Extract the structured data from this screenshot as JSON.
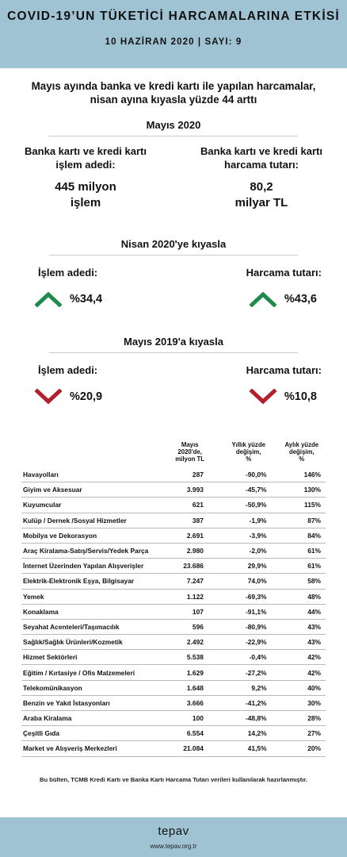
{
  "header": {
    "title": "COVID-19’UN TÜKETİCİ HARCAMALARINA ETKİSİ",
    "subtitle": "10 HAZİRAN 2020 | SAYI: 9"
  },
  "headline": {
    "line1": "Mayıs ayında banka ve kredi kartı ile yapılan harcamalar,",
    "line2": "nisan ayına kıyasla yüzde 44 arttı"
  },
  "may2020": {
    "title": "Mayıs 2020",
    "left": {
      "label1": "Banka kartı ve kredi kartı",
      "label2": "işlem adedi:",
      "value1": "445 milyon",
      "value2": "işlem"
    },
    "right": {
      "label1": "Banka kartı ve kredi kartı",
      "label2": "harcama tutarı:",
      "value1": "80,2",
      "value2": "milyar TL"
    }
  },
  "vs_april": {
    "title": "Nisan 2020'ye kıyasla",
    "left": {
      "label": "İşlem adedi:",
      "value": "%34,4",
      "direction": "up"
    },
    "right": {
      "label": "Harcama tutarı:",
      "value": "%43,6",
      "direction": "up"
    }
  },
  "vs_may2019": {
    "title": "Mayıs 2019'a kıyasla",
    "left": {
      "label": "İşlem adedi:",
      "value": "%20,9",
      "direction": "down"
    },
    "right": {
      "label": "Harcama tutarı:",
      "value": "%10,8",
      "direction": "down"
    }
  },
  "colors": {
    "header_bg": "#9fc3d2",
    "up_arrow": "#1e8a4c",
    "down_arrow": "#b31f2a"
  },
  "icons": {
    "up": "chevron-up-icon",
    "down": "chevron-down-icon"
  },
  "table": {
    "headers": {
      "category": "",
      "may2020": [
        "Mayıs",
        "2020'de,",
        "milyon TL"
      ],
      "yoy": [
        "Yıllık yüzde",
        "değişim,",
        "%"
      ],
      "mom": [
        "Aylık yüzde",
        "değişim,",
        "%"
      ]
    },
    "rows": [
      {
        "name": "Havayolları",
        "value": "287",
        "yoy": "-90,0%",
        "mom": "146%"
      },
      {
        "name": "Giyim ve Aksesuar",
        "value": "3.993",
        "yoy": "-45,7%",
        "mom": "130%"
      },
      {
        "name": "Kuyumcular",
        "value": "621",
        "yoy": "-50,9%",
        "mom": "115%"
      },
      {
        "name": "Kulüp / Dernek /Sosyal Hizmetler",
        "value": "387",
        "yoy": "-1,9%",
        "mom": "87%"
      },
      {
        "name": "Mobilya ve Dekorasyon",
        "value": "2.691",
        "yoy": "-3,9%",
        "mom": "84%"
      },
      {
        "name": "Araç Kiralama-Satış/Servis/Yedek Parça",
        "value": "2.980",
        "yoy": "-2,0%",
        "mom": "61%"
      },
      {
        "name": "İnternet Üzerinden Yapılan Alışverişler",
        "value": "23.686",
        "yoy": "29,9%",
        "mom": "61%"
      },
      {
        "name": "Elektrik-Elektronik Eşya, Bilgisayar",
        "value": "7.247",
        "yoy": "74,0%",
        "mom": "58%"
      },
      {
        "name": "Yemek",
        "value": "1.122",
        "yoy": "-69,3%",
        "mom": "48%"
      },
      {
        "name": "Konaklama",
        "value": "107",
        "yoy": "-91,1%",
        "mom": "44%"
      },
      {
        "name": "Seyahat Acenteleri/Taşımacılık",
        "value": "596",
        "yoy": "-80,9%",
        "mom": "43%"
      },
      {
        "name": "Sağlık/Sağlık Ürünleri/Kozmetik",
        "value": "2.492",
        "yoy": "-22,9%",
        "mom": "43%"
      },
      {
        "name": "Hizmet Sektörleri",
        "value": "5.538",
        "yoy": "-0,4%",
        "mom": "42%"
      },
      {
        "name": "Eğitim / Kırtasiye / Ofis Malzemeleri",
        "value": "1.629",
        "yoy": "-27,2%",
        "mom": "42%"
      },
      {
        "name": "Telekomünikasyon",
        "value": "1.648",
        "yoy": "9,2%",
        "mom": "40%"
      },
      {
        "name": "Benzin ve Yakıt İstasyonları",
        "value": "3.666",
        "yoy": "-41,2%",
        "mom": "30%"
      },
      {
        "name": "Araba Kiralama",
        "value": "100",
        "yoy": "-48,8%",
        "mom": "28%"
      },
      {
        "name": "Çeşitli Gıda",
        "value": "6.554",
        "yoy": "14,2%",
        "mom": "27%"
      },
      {
        "name": "Market ve Alışveriş Merkezleri",
        "value": "21.084",
        "yoy": "41,5%",
        "mom": "20%"
      }
    ]
  },
  "footnote": "Bu bülten, TCMB Kredi Kartı ve Banka Kartı Harcama Tutarı verileri kullanılarak hazırlanmıştır.",
  "footer": {
    "brand": "tepav",
    "url": "www.tepav.org.tr"
  }
}
